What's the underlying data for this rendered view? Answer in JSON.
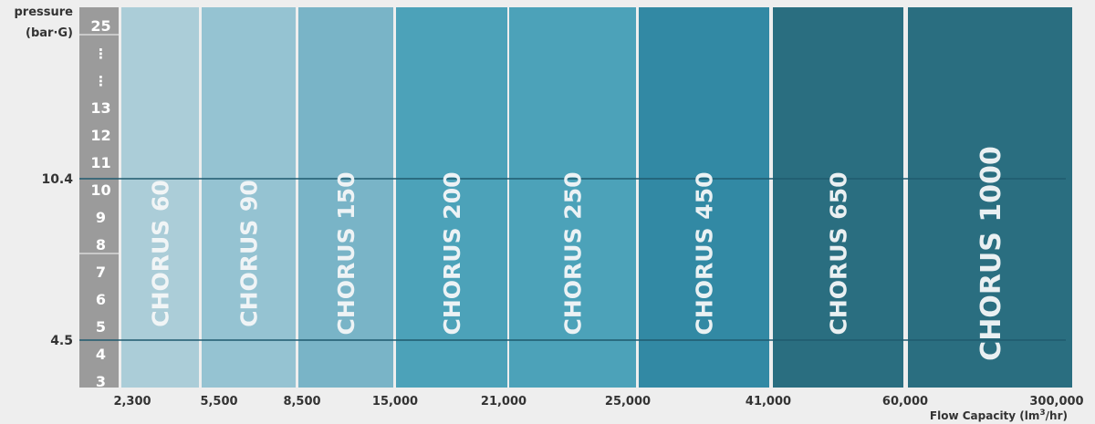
{
  "chart_data": {
    "type": "bar",
    "title": "",
    "ylabel_line1": "pressure",
    "ylabel_line2": "(bar·G)",
    "xlabel_main": "Flow  Capacity (lm",
    "xlabel_sup": "3",
    "xlabel_tail": "/hr)",
    "y_ticks": [
      "25",
      "⋮",
      "⋮",
      "13",
      "12",
      "11",
      "10",
      "9",
      "8",
      "7",
      "6",
      "5",
      "4",
      "3"
    ],
    "x_ticks": [
      "2,300",
      "5,500",
      "8,500",
      "15,000",
      "21,000",
      "25,000",
      "41,000",
      "60,000",
      "300,000"
    ],
    "reference_lines": [
      {
        "label": "10.4",
        "value": 10.4
      },
      {
        "label": "4.5",
        "value": 4.5
      }
    ],
    "series": [
      {
        "name": "CHORUS 60",
        "color": "#abcdd8"
      },
      {
        "name": "CHORUS 90",
        "color": "#95c3d2"
      },
      {
        "name": "CHORUS 150",
        "color": "#79b4c7"
      },
      {
        "name": "CHORUS 200",
        "color": "#4ca2b9"
      },
      {
        "name": "CHORUS 250",
        "color": "#4ca2b9"
      },
      {
        "name": "CHORUS 450",
        "color": "#3289a4"
      },
      {
        "name": "CHORUS 650",
        "color": "#2a6e80"
      },
      {
        "name": "CHORUS 1000",
        "color": "#2a6e80"
      }
    ]
  }
}
